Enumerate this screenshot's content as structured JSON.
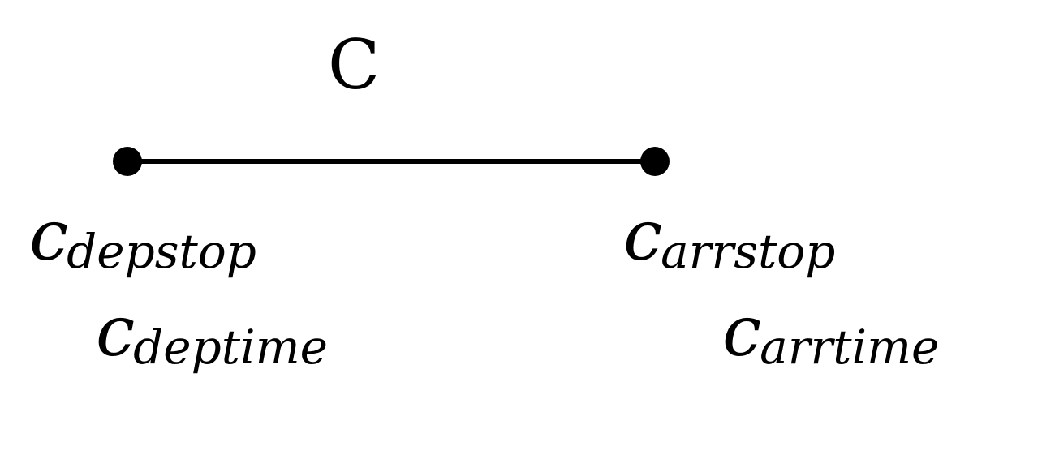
{
  "connection": {
    "name": "C"
  },
  "labels": {
    "dep_stop": {
      "base": "c",
      "sub": "depstop"
    },
    "dep_time": {
      "base": "c",
      "sub": "deptime"
    },
    "arr_stop": {
      "base": "c",
      "sub": "arrstop"
    },
    "arr_time": {
      "base": "c",
      "sub": "arrtime"
    }
  },
  "colors": {
    "ink": "#000000",
    "background": "#ffffff"
  }
}
